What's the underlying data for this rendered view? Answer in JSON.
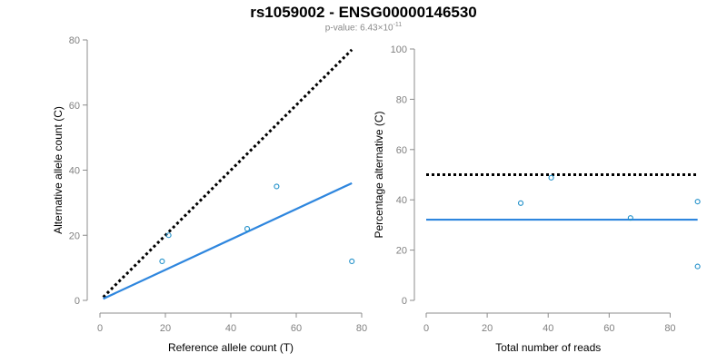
{
  "title": "rs1059002 - ENSG00000146530",
  "subtitle": {
    "prefix": "p-value: 6.43×10",
    "exponent": "-11"
  },
  "colors": {
    "fit": "#2e86de",
    "points": "#1f8fc9",
    "expected": "#000000",
    "axis": "#8c8c8c"
  },
  "chart_data": [
    {
      "type": "scatter",
      "xlabel": "Reference allele count (T)",
      "ylabel": "Alternative allele count (C)",
      "xlim": [
        0,
        80
      ],
      "ylim": [
        0,
        80
      ],
      "xticks": [
        0,
        20,
        40,
        60,
        80
      ],
      "yticks": [
        0,
        20,
        40,
        60,
        80
      ],
      "grid": false,
      "points": [
        {
          "x": 19,
          "y": 12
        },
        {
          "x": 21,
          "y": 20
        },
        {
          "x": 45,
          "y": 22
        },
        {
          "x": 54,
          "y": 35
        },
        {
          "x": 77,
          "y": 12
        }
      ],
      "lines": [
        {
          "style": "dotted",
          "color": "expected",
          "x": [
            1,
            77
          ],
          "y": [
            1,
            77
          ]
        },
        {
          "style": "solid",
          "color": "fit",
          "x": [
            1,
            77
          ],
          "y": [
            0.5,
            36
          ]
        }
      ]
    },
    {
      "type": "scatter",
      "xlabel": "Total number of reads",
      "ylabel": "Percentage alternative (C)",
      "xlim": [
        0,
        90
      ],
      "ylim": [
        0,
        100
      ],
      "xticks": [
        0,
        20,
        40,
        60,
        80
      ],
      "yticks": [
        0,
        20,
        40,
        60,
        80,
        100
      ],
      "grid": false,
      "points": [
        {
          "x": 31,
          "y": 38.7
        },
        {
          "x": 41,
          "y": 48.8
        },
        {
          "x": 67,
          "y": 32.8
        },
        {
          "x": 89,
          "y": 39.3
        },
        {
          "x": 89,
          "y": 13.5
        }
      ],
      "lines": [
        {
          "style": "dotted",
          "color": "expected",
          "x": [
            0,
            89
          ],
          "y": [
            50,
            50
          ]
        },
        {
          "style": "solid",
          "color": "fit",
          "x": [
            0,
            89
          ],
          "y": [
            32.1,
            32.1
          ]
        }
      ]
    }
  ]
}
